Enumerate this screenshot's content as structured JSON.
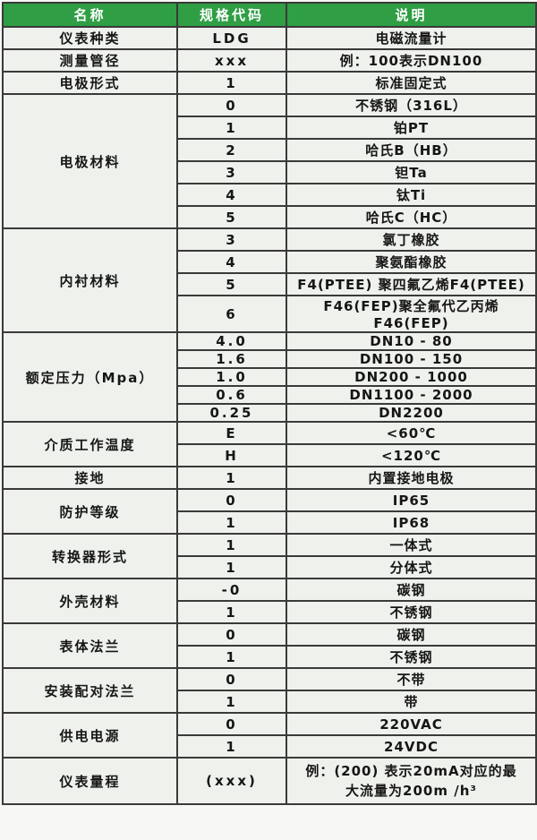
{
  "colors": {
    "header_bg": "#2f9e44",
    "header_text": "#ffffff",
    "cell_bg": "#eef1ec",
    "border": "#3a3a38"
  },
  "header": {
    "col_name": "名称",
    "col_code": "规格代码",
    "col_desc": "说明"
  },
  "groups": [
    {
      "name": "仪表种类",
      "entries": [
        {
          "code": "LDG",
          "desc": "电磁流量计"
        }
      ]
    },
    {
      "name": "测量管径",
      "entries": [
        {
          "code": "xxx",
          "desc": "例：100表示DN100"
        }
      ]
    },
    {
      "name": "电极形式",
      "entries": [
        {
          "code": "1",
          "desc": "标准固定式"
        }
      ]
    },
    {
      "name": "电极材料",
      "entries": [
        {
          "code": "0",
          "desc": "不锈钢（316L）"
        },
        {
          "code": "1",
          "desc": "铂PT"
        },
        {
          "code": "2",
          "desc": "哈氏B（HB）"
        },
        {
          "code": "3",
          "desc": "钽Ta"
        },
        {
          "code": "4",
          "desc": "钛Ti"
        },
        {
          "code": "5",
          "desc": "哈氏C（HC）"
        }
      ]
    },
    {
      "name": "内衬材料",
      "entries": [
        {
          "code": "3",
          "desc": "氯丁橡胶"
        },
        {
          "code": "4",
          "desc": "聚氨酯橡胶"
        },
        {
          "code": "5",
          "desc": "F4(PTEE) 聚四氟乙烯F4(PTEE)"
        },
        {
          "code": "6",
          "desc": "F46(FEP)聚全氟代乙丙烯F46(FEP)"
        }
      ]
    },
    {
      "name": "额定压力（Mpa）",
      "entries": [
        {
          "code": "4.0",
          "desc": "DN10 - 80"
        },
        {
          "code": "1.6",
          "desc": "DN100 - 150"
        },
        {
          "code": "1.0",
          "desc": "DN200 - 1000"
        },
        {
          "code": "0.6",
          "desc": "DN1100 - 2000"
        },
        {
          "code": "0.25",
          "desc": "DN2200"
        }
      ]
    },
    {
      "name": "介质工作温度",
      "entries": [
        {
          "code": "E",
          "desc": "<60℃"
        },
        {
          "code": "H",
          "desc": "<120℃"
        }
      ]
    },
    {
      "name": "接地",
      "entries": [
        {
          "code": "1",
          "desc": "内置接地电极"
        }
      ]
    },
    {
      "name": "防护等级",
      "entries": [
        {
          "code": "0",
          "desc": "IP65"
        },
        {
          "code": "1",
          "desc": "IP68"
        }
      ]
    },
    {
      "name": "转换器形式",
      "entries": [
        {
          "code": "1",
          "desc": "一体式"
        },
        {
          "code": "1",
          "desc": "分体式"
        }
      ]
    },
    {
      "name": "外壳材料",
      "entries": [
        {
          "code": "-0",
          "desc": "碳钢"
        },
        {
          "code": "1",
          "desc": "不锈钢"
        }
      ]
    },
    {
      "name": "表体法兰",
      "entries": [
        {
          "code": "0",
          "desc": "碳钢"
        },
        {
          "code": "1",
          "desc": "不锈钢"
        }
      ]
    },
    {
      "name": "安装配对法兰",
      "entries": [
        {
          "code": "0",
          "desc": "不带"
        },
        {
          "code": "1",
          "desc": "带"
        }
      ]
    },
    {
      "name": "供电电源",
      "entries": [
        {
          "code": "0",
          "desc": "220VAC"
        },
        {
          "code": "1",
          "desc": "24VDC"
        }
      ]
    },
    {
      "name": "仪表量程",
      "entries": [
        {
          "code": "(xxx)",
          "desc": "例：(200) 表示20mA对应的最大流量为200m /h³"
        }
      ]
    }
  ]
}
